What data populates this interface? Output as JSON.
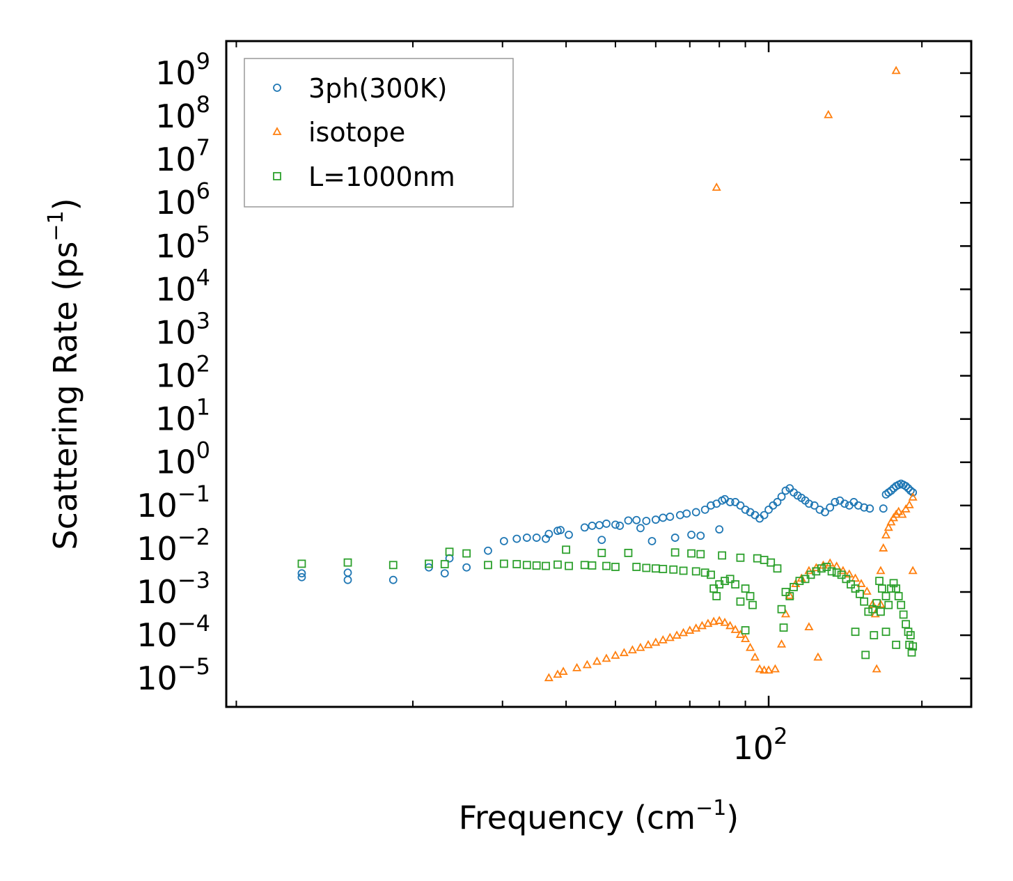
{
  "chart_data": {
    "type": "scatter",
    "title": "",
    "xlabel": {
      "text": "Frequency (cm",
      "sup": "−1",
      "tail": ")"
    },
    "ylabel": {
      "text": "Scattering Rate (ps",
      "sup": "−1",
      "tail": ")"
    },
    "xscale": "log",
    "yscale": "log",
    "xlim": [
      8.6,
      250
    ],
    "ylim": [
      2.2e-06,
      5500000000.0
    ],
    "x_ticks": [
      {
        "value": 100,
        "base": "10",
        "exp": "2"
      }
    ],
    "y_ticks": [
      {
        "value": 1e-05,
        "base": "10",
        "exp": "−5"
      },
      {
        "value": 0.0001,
        "base": "10",
        "exp": "−4"
      },
      {
        "value": 0.001,
        "base": "10",
        "exp": "−3"
      },
      {
        "value": 0.01,
        "base": "10",
        "exp": "−2"
      },
      {
        "value": 0.1,
        "base": "10",
        "exp": "−1"
      },
      {
        "value": 1,
        "base": "10",
        "exp": "0"
      },
      {
        "value": 10,
        "base": "10",
        "exp": "1"
      },
      {
        "value": 100,
        "base": "10",
        "exp": "2"
      },
      {
        "value": 1000,
        "base": "10",
        "exp": "3"
      },
      {
        "value": 10000,
        "base": "10",
        "exp": "4"
      },
      {
        "value": 100000,
        "base": "10",
        "exp": "5"
      },
      {
        "value": 1000000,
        "base": "10",
        "exp": "6"
      },
      {
        "value": 10000000,
        "base": "10",
        "exp": "7"
      },
      {
        "value": 100000000,
        "base": "10",
        "exp": "8"
      },
      {
        "value": 1000000000,
        "base": "10",
        "exp": "9"
      }
    ],
    "legend": {
      "position": "top-left"
    },
    "series": [
      {
        "name": "3ph(300K)",
        "marker": "circle",
        "color": "#1f77b4",
        "points": [
          [
            12.1,
            0.0022
          ],
          [
            12.1,
            0.0027
          ],
          [
            14.9,
            0.0019
          ],
          [
            14.9,
            0.0028
          ],
          [
            18.3,
            0.0019
          ],
          [
            21.5,
            0.0037
          ],
          [
            23.1,
            0.0027
          ],
          [
            23.6,
            0.006
          ],
          [
            25.5,
            0.0037
          ],
          [
            28.1,
            0.009
          ],
          [
            30.2,
            0.015
          ],
          [
            32.0,
            0.017
          ],
          [
            33.5,
            0.018
          ],
          [
            35.0,
            0.018
          ],
          [
            36.5,
            0.017
          ],
          [
            37.0,
            0.022
          ],
          [
            38.5,
            0.026
          ],
          [
            39.0,
            0.027
          ],
          [
            40.5,
            0.021
          ],
          [
            43.5,
            0.031
          ],
          [
            45.0,
            0.034
          ],
          [
            46.5,
            0.035
          ],
          [
            48.0,
            0.038
          ],
          [
            50.0,
            0.036
          ],
          [
            47.0,
            0.016
          ],
          [
            51.0,
            0.034
          ],
          [
            53.0,
            0.045
          ],
          [
            55.0,
            0.046
          ],
          [
            56.0,
            0.03
          ],
          [
            57.5,
            0.044
          ],
          [
            59.0,
            0.015
          ],
          [
            60.0,
            0.047
          ],
          [
            62.0,
            0.052
          ],
          [
            64.0,
            0.055
          ],
          [
            65.5,
            0.018
          ],
          [
            67.0,
            0.06
          ],
          [
            69.0,
            0.065
          ],
          [
            70.5,
            0.021
          ],
          [
            72.0,
            0.07
          ],
          [
            73.5,
            0.02
          ],
          [
            75.0,
            0.08
          ],
          [
            77.0,
            0.1
          ],
          [
            79.0,
            0.11
          ],
          [
            80.0,
            0.028
          ],
          [
            81.0,
            0.13
          ],
          [
            82.0,
            0.14
          ],
          [
            84.0,
            0.12
          ],
          [
            86.0,
            0.12
          ],
          [
            88.0,
            0.1
          ],
          [
            90.0,
            0.08
          ],
          [
            92.0,
            0.07
          ],
          [
            94.0,
            0.06
          ],
          [
            96.0,
            0.05
          ],
          [
            98.0,
            0.06
          ],
          [
            100.0,
            0.08
          ],
          [
            102.0,
            0.1
          ],
          [
            104.0,
            0.12
          ],
          [
            106.0,
            0.16
          ],
          [
            108.0,
            0.22
          ],
          [
            110.0,
            0.25
          ],
          [
            112.0,
            0.2
          ],
          [
            114.0,
            0.17
          ],
          [
            116.0,
            0.15
          ],
          [
            118.0,
            0.13
          ],
          [
            120.0,
            0.11
          ],
          [
            123.0,
            0.1
          ],
          [
            126.0,
            0.08
          ],
          [
            129.0,
            0.07
          ],
          [
            132.0,
            0.09
          ],
          [
            135.0,
            0.12
          ],
          [
            138.0,
            0.13
          ],
          [
            141.0,
            0.11
          ],
          [
            144.0,
            0.1
          ],
          [
            147.0,
            0.12
          ],
          [
            150.0,
            0.1
          ],
          [
            154.0,
            0.09
          ],
          [
            158.0,
            0.085
          ],
          [
            168.0,
            0.085
          ],
          [
            170.0,
            0.18
          ],
          [
            172.0,
            0.2
          ],
          [
            174.0,
            0.22
          ],
          [
            176.0,
            0.25
          ],
          [
            178.0,
            0.28
          ],
          [
            180.0,
            0.3
          ],
          [
            182.0,
            0.32
          ],
          [
            184.0,
            0.3
          ],
          [
            186.0,
            0.28
          ],
          [
            188.0,
            0.25
          ],
          [
            190.0,
            0.22
          ],
          [
            192.0,
            0.2
          ]
        ]
      },
      {
        "name": "isotope",
        "marker": "triangle",
        "color": "#ff7f0e",
        "points": [
          [
            37.0,
            1e-05
          ],
          [
            38.5,
            1.2e-05
          ],
          [
            39.5,
            1.4e-05
          ],
          [
            42.0,
            1.7e-05
          ],
          [
            44.0,
            2e-05
          ],
          [
            46.0,
            2.4e-05
          ],
          [
            48.0,
            2.8e-05
          ],
          [
            50.0,
            3.3e-05
          ],
          [
            52.0,
            3.8e-05
          ],
          [
            54.0,
            4.4e-05
          ],
          [
            56.0,
            5e-05
          ],
          [
            58.0,
            5.8e-05
          ],
          [
            60.0,
            6.6e-05
          ],
          [
            62.0,
            7.5e-05
          ],
          [
            64.0,
            8.5e-05
          ],
          [
            66.0,
            9.6e-05
          ],
          [
            68.0,
            0.00011
          ],
          [
            70.0,
            0.000125
          ],
          [
            72.0,
            0.00014
          ],
          [
            74.0,
            0.00016
          ],
          [
            76.0,
            0.00018
          ],
          [
            78.0,
            0.0002
          ],
          [
            80.0,
            0.00021
          ],
          [
            82.0,
            0.00019
          ],
          [
            84.0,
            0.00016
          ],
          [
            86.0,
            0.00013
          ],
          [
            88.0,
            0.0001
          ],
          [
            90.0,
            8e-05
          ],
          [
            92.0,
            5e-05
          ],
          [
            94.0,
            3e-05
          ],
          [
            96.0,
            1.6e-05
          ],
          [
            98.0,
            1.5e-05
          ],
          [
            100.0,
            1.5e-05
          ],
          [
            103.0,
            1.6e-05
          ],
          [
            106.0,
            6e-05
          ],
          [
            108.0,
            0.0003
          ],
          [
            110.0,
            0.0008
          ],
          [
            113.0,
            0.0015
          ],
          [
            116.0,
            0.002
          ],
          [
            120.0,
            0.003
          ],
          [
            124.0,
            0.0035
          ],
          [
            128.0,
            0.004
          ],
          [
            132.0,
            0.0045
          ],
          [
            136.0,
            0.0038
          ],
          [
            140.0,
            0.003
          ],
          [
            144.0,
            0.0025
          ],
          [
            148.0,
            0.002
          ],
          [
            152.0,
            0.0015
          ],
          [
            156.0,
            0.001
          ],
          [
            160.0,
            0.0005
          ],
          [
            162.0,
            0.0003
          ],
          [
            120.0,
            0.00015
          ],
          [
            125.0,
            3e-05
          ],
          [
            163.0,
            1.6e-05
          ],
          [
            168.0,
            0.01
          ],
          [
            170.0,
            0.02
          ],
          [
            172.0,
            0.03
          ],
          [
            174.0,
            0.04
          ],
          [
            176.0,
            0.05
          ],
          [
            178.0,
            0.06
          ],
          [
            180.0,
            0.07
          ],
          [
            183.0,
            0.06
          ],
          [
            186.0,
            0.08
          ],
          [
            189.0,
            0.1
          ],
          [
            192.0,
            0.15
          ],
          [
            192.0,
            0.003
          ],
          [
            166.0,
            0.003
          ],
          [
            166.0,
            0.0005
          ],
          [
            79.0,
            2200000.0
          ],
          [
            131.0,
            105000000.0
          ],
          [
            178.0,
            1100000000.0
          ]
        ]
      },
      {
        "name": "L=1000nm",
        "marker": "square",
        "color": "#2ca02c",
        "points": [
          [
            12.1,
            0.0045
          ],
          [
            14.9,
            0.0048
          ],
          [
            18.3,
            0.0042
          ],
          [
            21.5,
            0.0045
          ],
          [
            23.1,
            0.0044
          ],
          [
            23.6,
            0.0085
          ],
          [
            25.5,
            0.0078
          ],
          [
            28.1,
            0.0042
          ],
          [
            30.2,
            0.0045
          ],
          [
            32.0,
            0.0044
          ],
          [
            33.5,
            0.0042
          ],
          [
            35.0,
            0.0041
          ],
          [
            36.5,
            0.004
          ],
          [
            38.5,
            0.0043
          ],
          [
            40.5,
            0.004
          ],
          [
            40.0,
            0.0095
          ],
          [
            43.5,
            0.0042
          ],
          [
            45.0,
            0.0041
          ],
          [
            47.0,
            0.008
          ],
          [
            48.0,
            0.004
          ],
          [
            50.0,
            0.0038
          ],
          [
            53.0,
            0.008
          ],
          [
            55.0,
            0.0038
          ],
          [
            57.5,
            0.0036
          ],
          [
            60.0,
            0.0035
          ],
          [
            62.0,
            0.0034
          ],
          [
            65.0,
            0.0033
          ],
          [
            65.5,
            0.0082
          ],
          [
            68.0,
            0.0031
          ],
          [
            70.5,
            0.0078
          ],
          [
            72.0,
            0.003
          ],
          [
            73.5,
            0.0075
          ],
          [
            75.0,
            0.0028
          ],
          [
            77.0,
            0.0025
          ],
          [
            78.0,
            0.0012
          ],
          [
            79.0,
            0.0008
          ],
          [
            80.0,
            0.0015
          ],
          [
            81.0,
            0.007
          ],
          [
            82.0,
            0.0018
          ],
          [
            84.0,
            0.002
          ],
          [
            86.0,
            0.0015
          ],
          [
            88.0,
            0.0006
          ],
          [
            88.0,
            0.0062
          ],
          [
            90.0,
            0.0012
          ],
          [
            92.0,
            0.0008
          ],
          [
            93.0,
            0.0005
          ],
          [
            90.0,
            0.00013
          ],
          [
            95.0,
            0.006
          ],
          [
            98.0,
            0.0055
          ],
          [
            101.0,
            0.0048
          ],
          [
            104.0,
            0.0035
          ],
          [
            106.0,
            0.0004
          ],
          [
            107.0,
            0.00015
          ],
          [
            108.0,
            0.001
          ],
          [
            110.0,
            0.0008
          ],
          [
            112.0,
            0.0013
          ],
          [
            115.0,
            0.0018
          ],
          [
            118.0,
            0.002
          ],
          [
            121.0,
            0.0025
          ],
          [
            124.0,
            0.003
          ],
          [
            127.0,
            0.0035
          ],
          [
            130.0,
            0.0038
          ],
          [
            133.0,
            0.003
          ],
          [
            136.0,
            0.0028
          ],
          [
            139.0,
            0.0025
          ],
          [
            142.0,
            0.002
          ],
          [
            145.0,
            0.0015
          ],
          [
            148.0,
            0.0012
          ],
          [
            151.0,
            0.0009
          ],
          [
            154.0,
            0.0006
          ],
          [
            157.0,
            0.00035
          ],
          [
            160.0,
            0.0004
          ],
          [
            161.0,
            0.0001
          ],
          [
            163.0,
            0.00055
          ],
          [
            165.0,
            0.0018
          ],
          [
            167.0,
            0.0012
          ],
          [
            155.0,
            3.5e-05
          ],
          [
            148.0,
            0.00012
          ],
          [
            170.0,
            0.0008
          ],
          [
            172.0,
            0.0005
          ],
          [
            174.0,
            0.0012
          ],
          [
            176.0,
            0.0016
          ],
          [
            178.0,
            0.0012
          ],
          [
            180.0,
            0.0008
          ],
          [
            182.0,
            0.0005
          ],
          [
            184.0,
            0.0003
          ],
          [
            186.0,
            0.00018
          ],
          [
            188.0,
            0.00012
          ],
          [
            190.0,
            0.0001
          ],
          [
            192.0,
            5.5e-05
          ],
          [
            191.0,
            4e-05
          ],
          [
            189.0,
            6e-05
          ],
          [
            178.0,
            6e-05
          ],
          [
            170.0,
            0.00012
          ],
          [
            166.0,
            0.00035
          ]
        ]
      }
    ]
  }
}
